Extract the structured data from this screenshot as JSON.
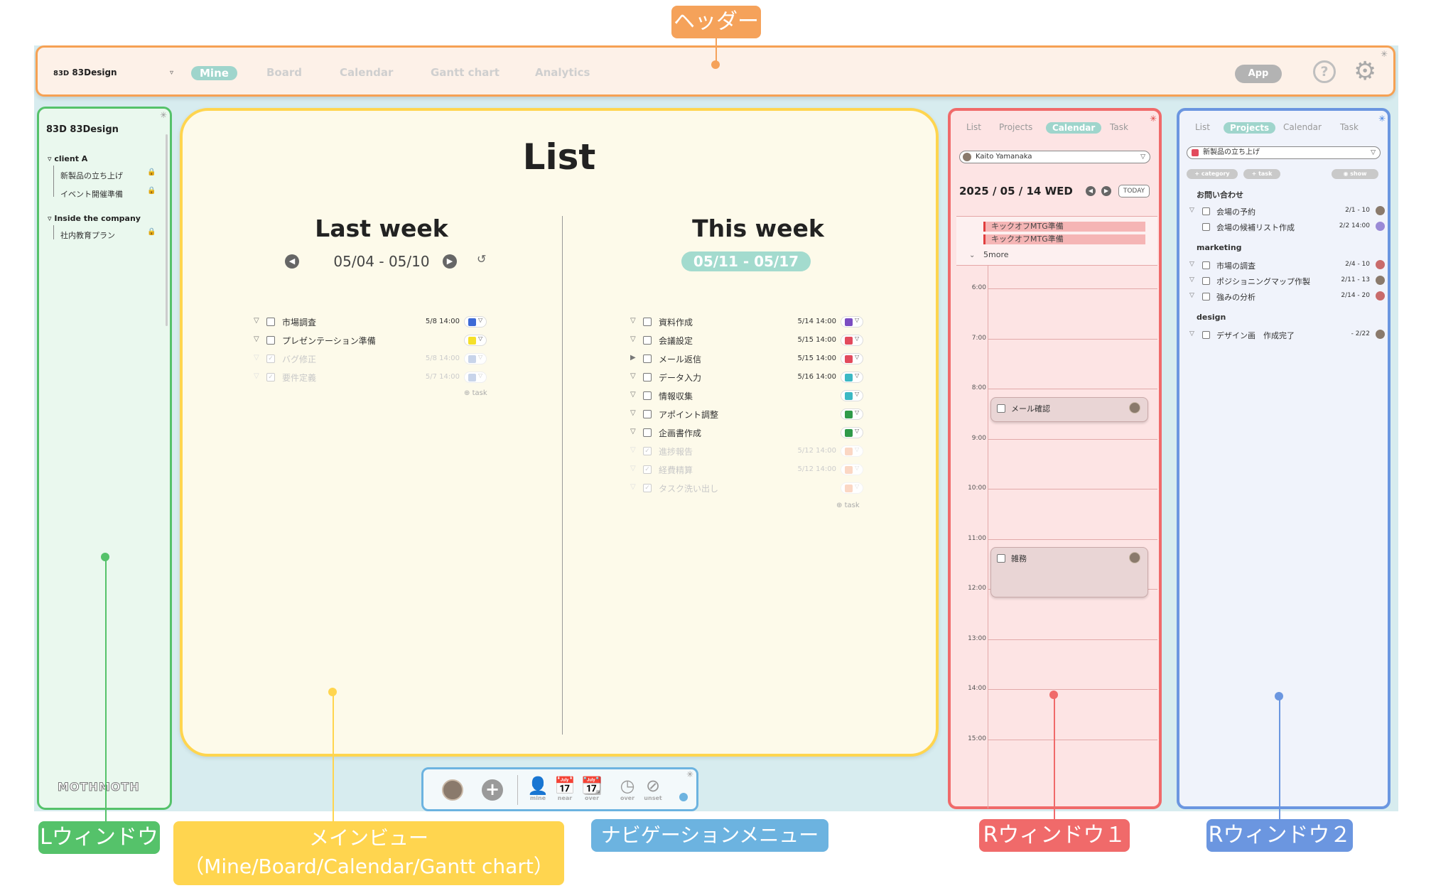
{
  "colors": {
    "header": "#f6a153",
    "left_window": "#55c26a",
    "main_view": "#ffd54f",
    "nav_menu": "#6cb3e0",
    "right_window_1": "#f06a6a",
    "right_window_2": "#6b96e0",
    "accent_teal": "#9fd5cc"
  },
  "annotations": {
    "header": "ヘッダー",
    "left_window": "Lウィンドウ",
    "main_view_line1": "メインビュー",
    "main_view_line2": "（Mine/Board/Calendar/Gantt chart）",
    "nav_menu": "ナビゲーションメニュー",
    "right_window_1": "Rウィンドウ１",
    "right_window_2": "Rウィンドウ２"
  },
  "header": {
    "logo": "83Design",
    "logo_mark": "83D",
    "tabs": [
      "Mine",
      "Board",
      "Calendar",
      "Gantt chart",
      "Analytics"
    ],
    "active_tab": "Mine",
    "app_button": "App",
    "help_glyph": "?"
  },
  "left_window": {
    "logo_mark": "83D",
    "logo": "83Design",
    "groups": [
      {
        "name": "client A",
        "items": [
          "新製品の立ち上げ",
          "イベント開催準備"
        ]
      },
      {
        "name": "Inside the company",
        "items": [
          "社内教育プラン"
        ]
      }
    ],
    "brand": "MOTHMOTH"
  },
  "main_view": {
    "title": "List",
    "last_week": {
      "title": "Last week",
      "range": "05/04 - 05/10",
      "tasks": [
        {
          "name": "市場調査",
          "due": "5/8 14:00",
          "color": "#3d6ad6",
          "done": false
        },
        {
          "name": "プレゼンテーション準備",
          "due": "",
          "color": "#f5e02a",
          "done": false
        },
        {
          "name": "バグ修正",
          "due": "5/8 14:00",
          "color": "#c8d4ea",
          "done": true
        },
        {
          "name": "要件定義",
          "due": "5/7 14:00",
          "color": "#c8d4ea",
          "done": true
        }
      ],
      "add_label": "task"
    },
    "this_week": {
      "title": "This week",
      "range": "05/11 - 05/17",
      "tasks": [
        {
          "name": "資料作成",
          "due": "5/14 14:00",
          "color": "#7a4cc2",
          "done": false,
          "marker": "▽"
        },
        {
          "name": "会議設定",
          "due": "5/15 14:00",
          "color": "#e24a5c",
          "done": false,
          "marker": "▽"
        },
        {
          "name": "メール返信",
          "due": "5/15 14:00",
          "color": "#e24a5c",
          "done": false,
          "marker": "▶"
        },
        {
          "name": "データ入力",
          "due": "5/16 14:00",
          "color": "#3bb8c4",
          "done": false,
          "marker": "▽"
        },
        {
          "name": "情報収集",
          "due": "",
          "color": "#3bb8c4",
          "done": false,
          "marker": "▽"
        },
        {
          "name": "アポイント調整",
          "due": "",
          "color": "#2f9a4a",
          "done": false,
          "marker": "▽"
        },
        {
          "name": "企画書作成",
          "due": "",
          "color": "#2f9a4a",
          "done": false,
          "marker": "▽"
        },
        {
          "name": "進捗報告",
          "due": "5/12 14:00",
          "color": "#fbd7c4",
          "done": true,
          "marker": "▽"
        },
        {
          "name": "経費精算",
          "due": "5/12 14:00",
          "color": "#fbd7c4",
          "done": true,
          "marker": "▽"
        },
        {
          "name": "タスク洗い出し",
          "due": "",
          "color": "#fbd7c4",
          "done": true,
          "marker": "▽"
        }
      ],
      "add_label": "task"
    }
  },
  "nav_menu": {
    "items": [
      {
        "icon": "person-icon",
        "glyph": "👤",
        "label": "mine"
      },
      {
        "icon": "calendar-near-icon",
        "glyph": "📅",
        "label": "near"
      },
      {
        "icon": "calendar-over-icon",
        "glyph": "📆",
        "label": "over"
      },
      {
        "icon": "clock-over-icon",
        "glyph": "◷",
        "label": "over"
      },
      {
        "icon": "clock-unset-icon",
        "glyph": "⊘",
        "label": "unset"
      }
    ]
  },
  "right_window_1": {
    "tabs": [
      "List",
      "Projects",
      "Calendar",
      "Task"
    ],
    "active_tab": "Calendar",
    "user": "Kaito Yamanaka",
    "date": "2025 / 05 / 14 WED",
    "today_button": "TODAY",
    "allday_events": [
      "キックオフMTG準備",
      "キックオフMTG準備"
    ],
    "more": "5more",
    "hours": [
      "6:00",
      "7:00",
      "8:00",
      "9:00",
      "10:00",
      "11:00",
      "12:00",
      "13:00",
      "14:00",
      "15:00"
    ],
    "events": [
      {
        "name": "メール確認",
        "start": "8:10",
        "end": "8:40"
      },
      {
        "name": "雑務",
        "start": "11:10",
        "end": "12:10"
      }
    ]
  },
  "right_window_2": {
    "tabs": [
      "List",
      "Projects",
      "Calendar",
      "Task"
    ],
    "active_tab": "Projects",
    "project": "新製品の立ち上げ",
    "add_category": "+ category",
    "add_task": "+ task",
    "show": "show",
    "categories": [
      {
        "name": "お問い合わせ",
        "tasks": [
          {
            "name": "会場の予約",
            "due": "2/1 - 10",
            "sub": false
          },
          {
            "name": "会場の候補リスト作成",
            "due": "2/2 14:00",
            "sub": true
          }
        ]
      },
      {
        "name": "marketing",
        "tasks": [
          {
            "name": "市場の調査",
            "due": "2/4 - 10",
            "sub": false
          },
          {
            "name": "ポジショニングマップ作製",
            "due": "2/11 - 13",
            "sub": false
          },
          {
            "name": "強みの分析",
            "due": "2/14 - 20",
            "sub": false
          }
        ]
      },
      {
        "name": "design",
        "tasks": [
          {
            "name": "デザイン画　作成完了",
            "due": "- 2/22",
            "sub": false
          }
        ]
      }
    ]
  }
}
